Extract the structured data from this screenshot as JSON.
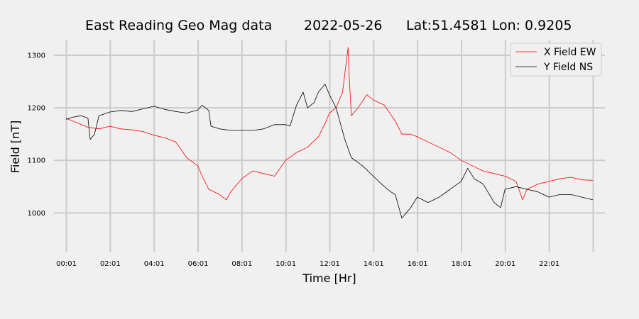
{
  "chart_data": {
    "type": "line",
    "title_parts": [
      "East Reading Geo Mag data",
      "2022-05-26",
      "Lat:51.4581  Lon: 0.9205"
    ],
    "xlabel": "Time  [Hr]",
    "ylabel": "Field  [nT]",
    "x_unit": "hours",
    "xlim": [
      -0.55,
      24.55
    ],
    "ylim": [
      925,
      1335
    ],
    "x_ticks": [
      {
        "x": 0.0167,
        "label": "00:01"
      },
      {
        "x": 2.0167,
        "label": "02:01"
      },
      {
        "x": 4.0167,
        "label": "04:01"
      },
      {
        "x": 6.0167,
        "label": "06:01"
      },
      {
        "x": 8.0167,
        "label": "08:01"
      },
      {
        "x": 10.0167,
        "label": "10:01"
      },
      {
        "x": 12.0167,
        "label": "12:01"
      },
      {
        "x": 14.0167,
        "label": "14:01"
      },
      {
        "x": 16.0167,
        "label": "16:01"
      },
      {
        "x": 18.0167,
        "label": "18:01"
      },
      {
        "x": 20.0167,
        "label": "20:01"
      },
      {
        "x": 22.0167,
        "label": "22:01"
      }
    ],
    "x_gridlines": [
      0.0167,
      2.0167,
      4.0167,
      6.0167,
      8.0167,
      10.0167,
      12.0167,
      14.0167,
      16.0167,
      18.0167,
      20.0167,
      22.0167,
      24.0167
    ],
    "y_ticks": [
      1000,
      1100,
      1200,
      1300
    ],
    "grid": true,
    "legend_position": "top-right",
    "series": [
      {
        "name": "X Field EW",
        "color": "#ff0000",
        "x": [
          0,
          0.3,
          0.7,
          1.0,
          1.5,
          2.0,
          2.5,
          3.0,
          3.5,
          4.0,
          4.5,
          5.0,
          5.5,
          6.0,
          6.2,
          6.5,
          7.0,
          7.3,
          7.5,
          8.0,
          8.5,
          9.0,
          9.5,
          10.0,
          10.5,
          11.0,
          11.5,
          11.8,
          12.0,
          12.3,
          12.6,
          12.85,
          12.9,
          13.0,
          13.3,
          13.7,
          14.0,
          14.5,
          15.0,
          15.3,
          15.7,
          16.0,
          16.5,
          17.0,
          17.5,
          18.0,
          18.5,
          19.0,
          19.5,
          20.0,
          20.5,
          20.8,
          21.0,
          21.5,
          22.0,
          22.5,
          23.0,
          23.5,
          24.0
        ],
        "y": [
          1180,
          1175,
          1168,
          1163,
          1160,
          1165,
          1160,
          1158,
          1155,
          1148,
          1143,
          1135,
          1105,
          1090,
          1070,
          1045,
          1035,
          1025,
          1040,
          1065,
          1080,
          1075,
          1070,
          1100,
          1115,
          1125,
          1145,
          1170,
          1190,
          1200,
          1230,
          1315,
          1260,
          1185,
          1200,
          1225,
          1215,
          1205,
          1175,
          1150,
          1150,
          1145,
          1135,
          1125,
          1115,
          1100,
          1090,
          1080,
          1075,
          1070,
          1060,
          1025,
          1045,
          1055,
          1060,
          1065,
          1068,
          1063,
          1062
        ]
      },
      {
        "name": "Y Field NS",
        "color": "#000000",
        "x": [
          0,
          0.3,
          0.7,
          1.0,
          1.1,
          1.3,
          1.5,
          2.0,
          2.5,
          3.0,
          3.5,
          4.0,
          4.5,
          5.0,
          5.5,
          6.0,
          6.2,
          6.5,
          6.6,
          7.0,
          7.5,
          8.0,
          8.5,
          9.0,
          9.5,
          10.0,
          10.2,
          10.5,
          10.8,
          11.0,
          11.3,
          11.5,
          11.8,
          12.0,
          12.3,
          12.5,
          12.7,
          13.0,
          13.5,
          14.0,
          14.5,
          14.8,
          15.0,
          15.3,
          15.7,
          16.0,
          16.5,
          17.0,
          17.5,
          18.0,
          18.3,
          18.6,
          19.0,
          19.5,
          19.8,
          20.0,
          20.5,
          21.0,
          21.5,
          22.0,
          22.5,
          23.0,
          23.5,
          24.0
        ],
        "y": [
          1178,
          1182,
          1185,
          1180,
          1140,
          1150,
          1185,
          1192,
          1195,
          1193,
          1198,
          1203,
          1197,
          1193,
          1190,
          1196,
          1205,
          1195,
          1165,
          1160,
          1157,
          1157,
          1157,
          1160,
          1168,
          1168,
          1165,
          1205,
          1230,
          1200,
          1210,
          1230,
          1245,
          1225,
          1200,
          1170,
          1140,
          1105,
          1090,
          1070,
          1050,
          1040,
          1035,
          990,
          1010,
          1030,
          1020,
          1030,
          1045,
          1060,
          1085,
          1065,
          1055,
          1020,
          1010,
          1045,
          1050,
          1045,
          1040,
          1030,
          1035,
          1035,
          1030,
          1025
        ]
      }
    ]
  }
}
